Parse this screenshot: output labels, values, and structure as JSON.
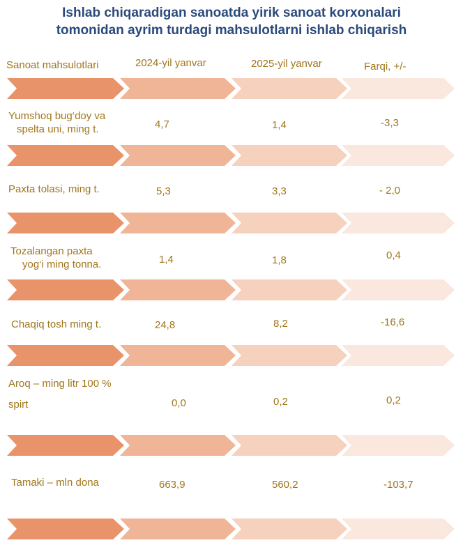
{
  "title": {
    "line1": "Ishlab chiqaradigan sanoatda yirik sanoat korxonalari",
    "line2": "tomonidan ayrim turdagi mahsulotlarni ishlab chiqarish"
  },
  "headers": {
    "product": "Sanoat mahsulotlari",
    "year2024": "2024-yil yanvar",
    "year2025": "2025-yil yanvar",
    "diff": "Farqi,  +/-"
  },
  "colors": {
    "title": "#2a4a7c",
    "text": "#a1761b",
    "arrow1": "#e8936a",
    "arrow2": "#f0b497",
    "arrow3": "#f6d1bd",
    "arrow4": "#fae7dd"
  },
  "rows": [
    {
      "product_line1": "Yumshoq bug‘doy va",
      "product_line2": "spelta uni, ming t.",
      "v2024": "4,7",
      "v2025": "1,4",
      "diff": "-3,3"
    },
    {
      "product_line1": "Paxta tolasi, ming t.",
      "product_line2": "",
      "v2024": "5,3",
      "v2025": "3,3",
      "diff": "- 2,0"
    },
    {
      "product_line1": "Tozalangan paxta",
      "product_line2": "yog‘i ming tonna.",
      "v2024": "1,4",
      "v2025": "1,8",
      "diff": "0,4"
    },
    {
      "product_line1": "Chaqiq tosh ming t.",
      "product_line2": "",
      "v2024": "24,8",
      "v2025": "8,2",
      "diff": "-16,6"
    },
    {
      "product_line1": "Aroq – ming litr  100 %",
      "product_line2": "spirt",
      "v2024": "0,0",
      "v2025": "0,2",
      "diff": "0,2"
    },
    {
      "product_line1": "Tamaki – mln dona",
      "product_line2": "",
      "v2024": "663,9",
      "v2025": "560,2",
      "diff": "-103,7"
    }
  ]
}
